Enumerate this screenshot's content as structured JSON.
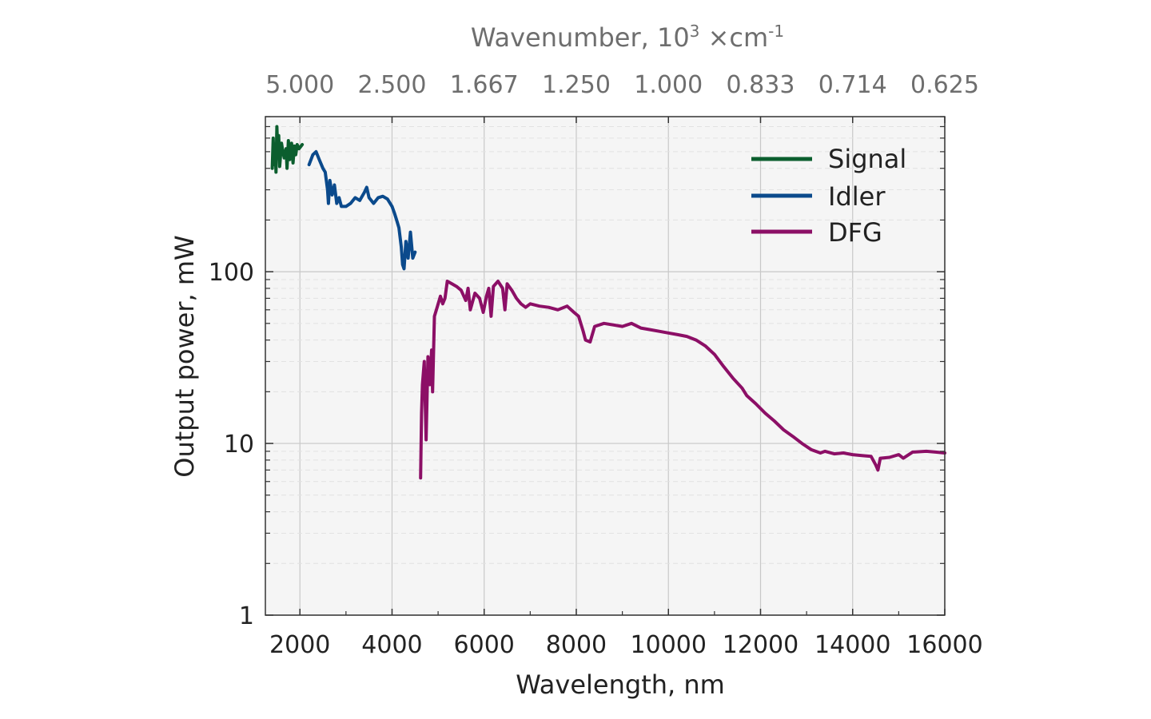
{
  "chart_data": {
    "type": "line",
    "xlabel": "Wavelength, nm",
    "ylabel": "Output power, mW",
    "top_axis": {
      "label": "Wavenumber, 10",
      "label_exp": "3",
      "label_unit": " ×cm",
      "label_unit_exp": "-1",
      "ticks": [
        {
          "wavelength": 2000,
          "label": "5.000"
        },
        {
          "wavelength": 4000,
          "label": "2.500"
        },
        {
          "wavelength": 6000,
          "label": "1.667"
        },
        {
          "wavelength": 8000,
          "label": "1.250"
        },
        {
          "wavelength": 10000,
          "label": "1.000"
        },
        {
          "wavelength": 12000,
          "label": "0.833"
        },
        {
          "wavelength": 14000,
          "label": "0.714"
        },
        {
          "wavelength": 16000,
          "label": "0.625"
        }
      ]
    },
    "xlim": [
      1250,
      16000
    ],
    "ylim": [
      1,
      800
    ],
    "yscale": "log",
    "grid": true,
    "legend_position": "top-right",
    "x_ticks": [
      2000,
      4000,
      6000,
      8000,
      10000,
      12000,
      14000,
      16000
    ],
    "x_tick_labels": [
      "2000",
      "4000",
      "6000",
      "8000",
      "10000",
      "12000",
      "14000",
      "16000"
    ],
    "y_ticks": [
      1,
      10,
      100
    ],
    "y_tick_labels": [
      "1",
      "10",
      "100"
    ],
    "series": [
      {
        "name": "Signal",
        "color": "#0b5e2e",
        "points": [
          [
            1400,
            400
          ],
          [
            1420,
            600
          ],
          [
            1440,
            420
          ],
          [
            1460,
            550
          ],
          [
            1480,
            380
          ],
          [
            1500,
            700
          ],
          [
            1520,
            480
          ],
          [
            1540,
            620
          ],
          [
            1560,
            410
          ],
          [
            1600,
            560
          ],
          [
            1630,
            500
          ],
          [
            1660,
            460
          ],
          [
            1700,
            520
          ],
          [
            1720,
            400
          ],
          [
            1750,
            580
          ],
          [
            1780,
            450
          ],
          [
            1820,
            560
          ],
          [
            1850,
            430
          ],
          [
            1880,
            540
          ],
          [
            1910,
            480
          ],
          [
            1940,
            550
          ],
          [
            1980,
            520
          ],
          [
            2050,
            550
          ]
        ]
      },
      {
        "name": "Idler",
        "color": "#0b4a8c",
        "points": [
          [
            2200,
            420
          ],
          [
            2280,
            480
          ],
          [
            2350,
            500
          ],
          [
            2420,
            450
          ],
          [
            2500,
            400
          ],
          [
            2550,
            380
          ],
          [
            2600,
            300
          ],
          [
            2620,
            250
          ],
          [
            2650,
            340
          ],
          [
            2700,
            280
          ],
          [
            2750,
            320
          ],
          [
            2800,
            250
          ],
          [
            2850,
            270
          ],
          [
            2900,
            240
          ],
          [
            3000,
            240
          ],
          [
            3100,
            250
          ],
          [
            3200,
            270
          ],
          [
            3300,
            260
          ],
          [
            3400,
            290
          ],
          [
            3450,
            310
          ],
          [
            3500,
            270
          ],
          [
            3600,
            250
          ],
          [
            3700,
            270
          ],
          [
            3800,
            275
          ],
          [
            3900,
            265
          ],
          [
            4000,
            240
          ],
          [
            4050,
            220
          ],
          [
            4100,
            200
          ],
          [
            4150,
            180
          ],
          [
            4200,
            140
          ],
          [
            4230,
            110
          ],
          [
            4260,
            104
          ],
          [
            4300,
            150
          ],
          [
            4350,
            120
          ],
          [
            4400,
            170
          ],
          [
            4450,
            120
          ],
          [
            4500,
            130
          ]
        ]
      },
      {
        "name": "DFG",
        "color": "#8c0f66",
        "points": [
          [
            4620,
            6.3
          ],
          [
            4640,
            15
          ],
          [
            4660,
            22
          ],
          [
            4700,
            30
          ],
          [
            4740,
            10.5
          ],
          [
            4780,
            32
          ],
          [
            4820,
            22
          ],
          [
            4860,
            35
          ],
          [
            4880,
            20
          ],
          [
            4920,
            55
          ],
          [
            4980,
            62
          ],
          [
            5050,
            72
          ],
          [
            5100,
            65
          ],
          [
            5150,
            70
          ],
          [
            5200,
            88
          ],
          [
            5300,
            85
          ],
          [
            5400,
            82
          ],
          [
            5500,
            78
          ],
          [
            5600,
            68
          ],
          [
            5650,
            80
          ],
          [
            5700,
            60
          ],
          [
            5800,
            75
          ],
          [
            5900,
            70
          ],
          [
            5980,
            58
          ],
          [
            6050,
            72
          ],
          [
            6100,
            80
          ],
          [
            6150,
            55
          ],
          [
            6200,
            82
          ],
          [
            6300,
            88
          ],
          [
            6400,
            80
          ],
          [
            6450,
            60
          ],
          [
            6500,
            85
          ],
          [
            6600,
            78
          ],
          [
            6700,
            70
          ],
          [
            6800,
            65
          ],
          [
            6900,
            62
          ],
          [
            7000,
            65
          ],
          [
            7200,
            63
          ],
          [
            7400,
            62
          ],
          [
            7600,
            60
          ],
          [
            7800,
            63
          ],
          [
            7950,
            58
          ],
          [
            8050,
            55
          ],
          [
            8150,
            45
          ],
          [
            8200,
            40
          ],
          [
            8300,
            39
          ],
          [
            8400,
            48
          ],
          [
            8600,
            50
          ],
          [
            8800,
            49
          ],
          [
            9000,
            48
          ],
          [
            9200,
            50
          ],
          [
            9400,
            47
          ],
          [
            9600,
            46
          ],
          [
            9800,
            45
          ],
          [
            10000,
            44
          ],
          [
            10200,
            43
          ],
          [
            10400,
            42
          ],
          [
            10600,
            40
          ],
          [
            10800,
            37
          ],
          [
            11000,
            33
          ],
          [
            11200,
            28
          ],
          [
            11400,
            24
          ],
          [
            11600,
            21
          ],
          [
            11700,
            19
          ],
          [
            11900,
            17
          ],
          [
            12100,
            15
          ],
          [
            12300,
            13.5
          ],
          [
            12500,
            12
          ],
          [
            12700,
            11
          ],
          [
            12900,
            10
          ],
          [
            13100,
            9.2
          ],
          [
            13300,
            8.8
          ],
          [
            13400,
            9
          ],
          [
            13600,
            8.7
          ],
          [
            13800,
            8.8
          ],
          [
            14000,
            8.6
          ],
          [
            14200,
            8.5
          ],
          [
            14400,
            8.4
          ],
          [
            14500,
            7.5
          ],
          [
            14550,
            7.0
          ],
          [
            14600,
            8.2
          ],
          [
            14800,
            8.3
          ],
          [
            15000,
            8.6
          ],
          [
            15100,
            8.2
          ],
          [
            15300,
            8.9
          ],
          [
            15600,
            9.0
          ],
          [
            15800,
            8.9
          ],
          [
            16000,
            8.8
          ]
        ]
      }
    ]
  }
}
